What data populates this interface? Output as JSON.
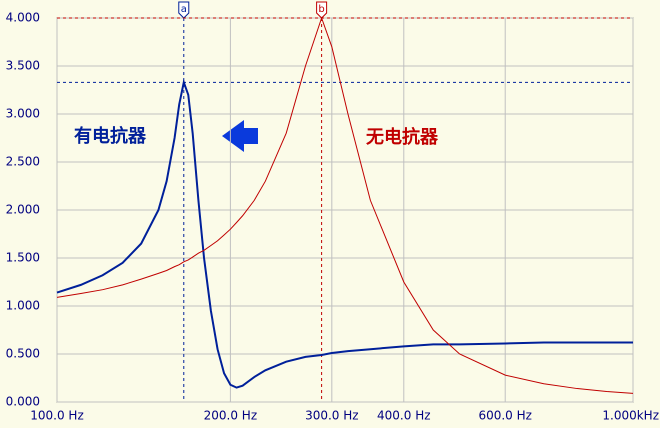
{
  "chart_data": {
    "type": "line",
    "xscale": "log",
    "grid": true,
    "x": [
      100,
      110,
      120,
      130,
      140,
      150,
      155,
      160,
      163,
      166,
      169,
      172,
      176,
      180,
      185,
      190,
      195,
      200,
      205,
      210,
      220,
      230,
      250,
      270,
      288,
      300,
      320,
      350,
      400,
      450,
      500,
      600,
      700,
      800,
      900,
      1000
    ],
    "series": [
      {
        "name": "有电抗器",
        "color": "#00209a",
        "values": [
          1.14,
          1.22,
          1.32,
          1.45,
          1.65,
          2.0,
          2.3,
          2.75,
          3.1,
          3.33,
          3.2,
          2.8,
          2.1,
          1.5,
          0.95,
          0.55,
          0.3,
          0.18,
          0.15,
          0.17,
          0.26,
          0.33,
          0.42,
          0.47,
          0.49,
          0.51,
          0.53,
          0.55,
          0.58,
          0.6,
          0.6,
          0.61,
          0.62,
          0.62,
          0.62,
          0.62
        ]
      },
      {
        "name": "无电抗器",
        "color": "#c00000",
        "values": [
          1.09,
          1.13,
          1.17,
          1.22,
          1.28,
          1.34,
          1.37,
          1.41,
          1.43,
          1.46,
          1.48,
          1.51,
          1.55,
          1.58,
          1.63,
          1.68,
          1.74,
          1.8,
          1.87,
          1.94,
          2.1,
          2.3,
          2.8,
          3.5,
          4.0,
          3.7,
          3.0,
          2.1,
          1.25,
          0.75,
          0.5,
          0.28,
          0.19,
          0.14,
          0.11,
          0.09
        ]
      }
    ],
    "markers": [
      {
        "label": "a",
        "x": 166,
        "y": 3.33,
        "color": "#00209a"
      },
      {
        "label": "b",
        "x": 288,
        "y": 4.0,
        "color": "#c00000"
      }
    ],
    "xlim": [
      100,
      1000
    ],
    "xticks": [
      {
        "value": 100,
        "label": "100.0 Hz"
      },
      {
        "value": 200,
        "label": "200.0 Hz"
      },
      {
        "value": 300,
        "label": "300.0 Hz"
      },
      {
        "value": 400,
        "label": "400.0 Hz"
      },
      {
        "value": 600,
        "label": "600.0 Hz"
      },
      {
        "value": 1000,
        "label": "1.000kHz"
      }
    ],
    "ylim": [
      0,
      4
    ],
    "yticks": [
      {
        "value": 0,
        "label": "0.000"
      },
      {
        "value": 0.5,
        "label": "0.500"
      },
      {
        "value": 1,
        "label": "1.000"
      },
      {
        "value": 1.5,
        "label": "1.500"
      },
      {
        "value": 2,
        "label": "2.000"
      },
      {
        "value": 2.5,
        "label": "2.500"
      },
      {
        "value": 3,
        "label": "3.000"
      },
      {
        "value": 3.5,
        "label": "3.500"
      },
      {
        "value": 4,
        "label": "4.000"
      }
    ]
  }
}
